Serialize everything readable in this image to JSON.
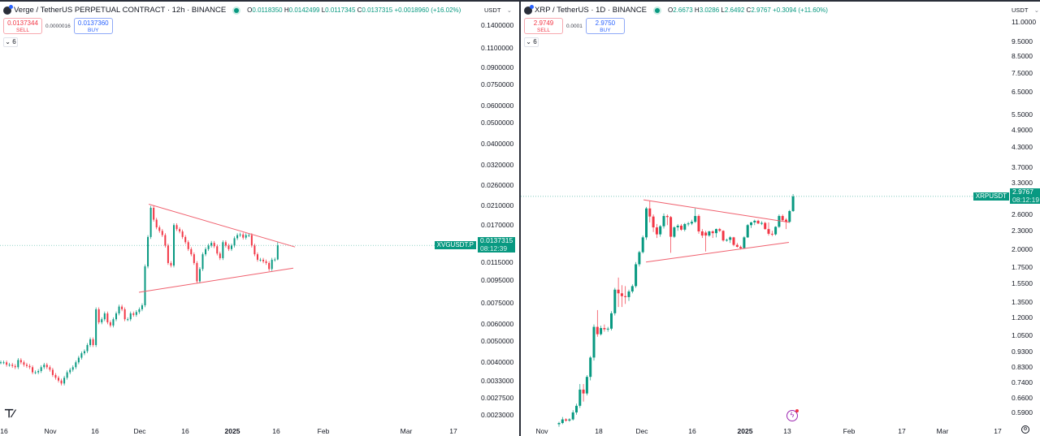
{
  "left": {
    "title": "Verge / TetherUS PERPETUAL CONTRACT · 12h · BINANCE",
    "ohlc": {
      "o_label": "O",
      "o": "0.0118350",
      "h_label": "H",
      "h": "0.0142499",
      "l_label": "L",
      "l": "0.0117345",
      "c_label": "C",
      "c": "0.0137315",
      "change": "+0.0018960 (+16.02%)"
    },
    "sell": {
      "price": "0.0137344",
      "label": "SELL"
    },
    "spread": "0.0000016",
    "buy": {
      "price": "0.0137360",
      "label": "BUY"
    },
    "indicators_toggle": "6",
    "currency": "USDT",
    "symbol_tag": "XVGUSDT.P",
    "last_price": "0.0137315",
    "countdown": "08:12:39",
    "logo": "TV"
  },
  "right": {
    "title": "XRP / TetherUS · 1D · BINANCE",
    "ohlc": {
      "o_label": "O",
      "o": "2.6673",
      "h_label": "H",
      "h": "3.0286",
      "l_label": "L",
      "l": "2.6492",
      "c_label": "C",
      "c": "2.9767",
      "change": "+0.3094 (+11.60%)"
    },
    "sell": {
      "price": "2.9749",
      "label": "SELL"
    },
    "spread": "0.0001",
    "buy": {
      "price": "2.9750",
      "label": "BUY"
    },
    "indicators_toggle": "6",
    "currency": "USDT",
    "symbol_tag": "XRPUSDT",
    "last_price": "2.9767",
    "countdown": "08:12:19"
  },
  "colors": {
    "up": "#089981",
    "down": "#f23645",
    "trendline": "#f0606e",
    "price_line": "#089981",
    "accent": "#2962ff"
  },
  "icons": {
    "bolt": "lightning-icon",
    "gear": "settings-icon",
    "chevron": "chevron-down-icon"
  },
  "chart_data": [
    {
      "type": "candlestick",
      "interval": "12h",
      "scale": "log",
      "ylim": [
        0.0021,
        0.15
      ],
      "y_ticks": [
        "0.1400000",
        "0.1100000",
        "0.0900000",
        "0.0750000",
        "0.0600000",
        "0.0500000",
        "0.0400000",
        "0.0320000",
        "0.0260000",
        "0.0210000",
        "0.0170000",
        "0.0115000",
        "0.0095000",
        "0.0075000",
        "0.0060000",
        "0.0050000",
        "0.0040000",
        "0.0033000",
        "0.0027500",
        "0.0023000"
      ],
      "x_ticks": [
        {
          "label": "16"
        },
        {
          "label": "Nov"
        },
        {
          "label": "16"
        },
        {
          "label": "Dec"
        },
        {
          "label": "16"
        },
        {
          "label": "2025",
          "bold": true
        },
        {
          "label": "16"
        },
        {
          "label": "Feb"
        },
        {
          "label": "Mar"
        },
        {
          "label": "17"
        }
      ],
      "closes": [
        0.004,
        0.004,
        0.0039,
        0.0039,
        0.00385,
        0.0038,
        0.0041,
        0.004,
        0.0039,
        0.00385,
        0.0038,
        0.0036,
        0.0036,
        0.00365,
        0.0038,
        0.0039,
        0.0038,
        0.0037,
        0.0035,
        0.0034,
        0.0033,
        0.0032,
        0.0034,
        0.0036,
        0.0037,
        0.0038,
        0.004,
        0.0042,
        0.0044,
        0.0045,
        0.0048,
        0.0051,
        0.0048,
        0.007,
        0.0061,
        0.0063,
        0.0067,
        0.0061,
        0.0059,
        0.0063,
        0.0067,
        0.0072,
        0.007,
        0.0063,
        0.0063,
        0.0067,
        0.0066,
        0.0068,
        0.007,
        0.0073,
        0.011,
        0.015,
        0.0204,
        0.018,
        0.0166,
        0.016,
        0.0153,
        0.0137,
        0.0114,
        0.0111,
        0.017,
        0.0163,
        0.0159,
        0.015,
        0.0142,
        0.0132,
        0.0125,
        0.0114,
        0.0094,
        0.0107,
        0.0125,
        0.0132,
        0.0137,
        0.0141,
        0.0136,
        0.0126,
        0.012,
        0.0142,
        0.0137,
        0.0132,
        0.0137,
        0.0148,
        0.0153,
        0.0154,
        0.0149,
        0.0153,
        0.0153,
        0.0137,
        0.0125,
        0.0118,
        0.0118,
        0.0116,
        0.0114,
        0.0107,
        0.0118,
        0.011835
      ],
      "last_candle": {
        "o": 0.011835,
        "h": 0.0142499,
        "l": 0.0117345,
        "c": 0.0137315
      },
      "last_price": 0.0137315,
      "trendlines": [
        {
          "from": {
            "i": 51.3,
            "price": 0.0212
          },
          "to": {
            "i": 102,
            "price": 0.0135
          }
        },
        {
          "from": {
            "i": 47.9,
            "price": 0.00837
          },
          "to": {
            "i": 101.4,
            "price": 0.0108
          }
        }
      ]
    },
    {
      "type": "candlestick",
      "interval": "1D",
      "scale": "log",
      "ylim": [
        0.55,
        11.5
      ],
      "y_ticks": [
        "11.0000",
        "9.5000",
        "8.5000",
        "7.5000",
        "6.5000",
        "5.5000",
        "4.9000",
        "4.3000",
        "3.7000",
        "3.3000",
        "2.6000",
        "2.3000",
        "2.0000",
        "1.7500",
        "1.5500",
        "1.3500",
        "1.2000",
        "1.0500",
        "0.9300",
        "0.8300",
        "0.7400",
        "0.6600",
        "0.5900"
      ],
      "x_ticks": [
        {
          "label": "Nov"
        },
        {
          "label": "18"
        },
        {
          "label": "Dec"
        },
        {
          "label": "16"
        },
        {
          "label": "2025",
          "bold": true
        },
        {
          "label": "13"
        },
        {
          "label": "Feb"
        },
        {
          "label": "17"
        },
        {
          "label": "Mar"
        },
        {
          "label": "17"
        }
      ],
      "ohlc": [
        [
          0.54,
          0.55,
          0.53,
          0.545
        ],
        [
          0.545,
          0.57,
          0.54,
          0.56
        ],
        [
          0.56,
          0.565,
          0.55,
          0.555
        ],
        [
          0.555,
          0.565,
          0.55,
          0.56
        ],
        [
          0.56,
          0.6,
          0.555,
          0.59
        ],
        [
          0.59,
          0.63,
          0.58,
          0.62
        ],
        [
          0.62,
          0.73,
          0.61,
          0.7
        ],
        [
          0.7,
          0.73,
          0.64,
          0.68
        ],
        [
          0.68,
          0.78,
          0.67,
          0.77
        ],
        [
          0.77,
          0.9,
          0.75,
          0.89
        ],
        [
          0.89,
          1.14,
          0.87,
          1.12
        ],
        [
          1.12,
          1.27,
          1.04,
          1.06
        ],
        [
          1.06,
          1.13,
          1.05,
          1.11
        ],
        [
          1.11,
          1.14,
          1.08,
          1.1
        ],
        [
          1.1,
          1.12,
          1.08,
          1.105
        ],
        [
          1.105,
          1.26,
          1.09,
          1.24
        ],
        [
          1.24,
          1.5,
          1.22,
          1.48
        ],
        [
          1.48,
          1.62,
          1.3,
          1.44
        ],
        [
          1.44,
          1.53,
          1.3,
          1.41
        ],
        [
          1.41,
          1.52,
          1.33,
          1.4
        ],
        [
          1.4,
          1.48,
          1.36,
          1.46
        ],
        [
          1.46,
          1.54,
          1.44,
          1.52
        ],
        [
          1.52,
          1.82,
          1.5,
          1.79
        ],
        [
          1.79,
          1.98,
          1.76,
          1.96
        ],
        [
          1.96,
          2.22,
          1.94,
          2.19
        ],
        [
          2.19,
          2.75,
          2.15,
          2.72
        ],
        [
          2.72,
          2.88,
          2.45,
          2.56
        ],
        [
          2.56,
          2.6,
          2.28,
          2.36
        ],
        [
          2.36,
          2.42,
          2.18,
          2.24
        ],
        [
          2.24,
          2.4,
          2.2,
          2.38
        ],
        [
          2.38,
          2.62,
          2.34,
          2.57
        ],
        [
          2.57,
          2.6,
          2.4,
          2.55
        ],
        [
          2.55,
          2.57,
          1.95,
          2.2
        ],
        [
          2.2,
          2.38,
          2.18,
          2.36
        ],
        [
          2.36,
          2.42,
          2.3,
          2.39
        ],
        [
          2.39,
          2.42,
          2.3,
          2.32
        ],
        [
          2.32,
          2.44,
          2.29,
          2.42
        ],
        [
          2.42,
          2.46,
          2.38,
          2.43
        ],
        [
          2.43,
          2.5,
          2.4,
          2.46
        ],
        [
          2.46,
          2.72,
          2.44,
          2.57
        ],
        [
          2.57,
          2.6,
          2.25,
          2.29
        ],
        [
          2.29,
          2.33,
          2.18,
          2.22
        ],
        [
          2.27,
          2.3,
          1.97,
          2.22
        ],
        [
          2.22,
          2.3,
          2.2,
          2.29
        ],
        [
          2.29,
          2.31,
          2.18,
          2.26
        ],
        [
          2.26,
          2.34,
          2.19,
          2.33
        ],
        [
          2.33,
          2.35,
          2.28,
          2.3
        ],
        [
          2.3,
          2.31,
          2.12,
          2.14
        ],
        [
          2.14,
          2.17,
          2.12,
          2.15
        ],
        [
          2.15,
          2.21,
          2.1,
          2.19
        ],
        [
          2.19,
          2.2,
          2.05,
          2.07
        ],
        [
          2.07,
          2.1,
          2.03,
          2.04
        ],
        [
          2.04,
          2.06,
          2.0,
          2.02
        ],
        [
          2.02,
          2.21,
          2.01,
          2.19
        ],
        [
          2.19,
          2.42,
          2.18,
          2.4
        ],
        [
          2.4,
          2.46,
          2.35,
          2.45
        ],
        [
          2.45,
          2.5,
          2.4,
          2.48
        ],
        [
          2.48,
          2.5,
          2.42,
          2.43
        ],
        [
          2.43,
          2.47,
          2.4,
          2.44
        ],
        [
          2.44,
          2.46,
          2.32,
          2.33
        ],
        [
          2.33,
          2.45,
          2.22,
          2.25
        ],
        [
          2.25,
          2.3,
          2.21,
          2.24
        ],
        [
          2.24,
          2.38,
          2.22,
          2.37
        ],
        [
          2.37,
          2.6,
          2.35,
          2.57
        ],
        [
          2.57,
          2.6,
          2.47,
          2.49
        ],
        [
          2.5,
          2.53,
          2.33,
          2.46
        ],
        [
          2.46,
          2.69,
          2.44,
          2.6673
        ],
        [
          2.6673,
          3.0286,
          2.6492,
          2.9767
        ]
      ],
      "last_price": 2.9767,
      "trendlines": [
        {
          "from": {
            "i": 24.2,
            "price": 2.9
          },
          "to": {
            "i": 66,
            "price": 2.45
          }
        },
        {
          "from": {
            "i": 24.9,
            "price": 1.82
          },
          "to": {
            "i": 65.8,
            "price": 2.11
          }
        }
      ]
    }
  ]
}
